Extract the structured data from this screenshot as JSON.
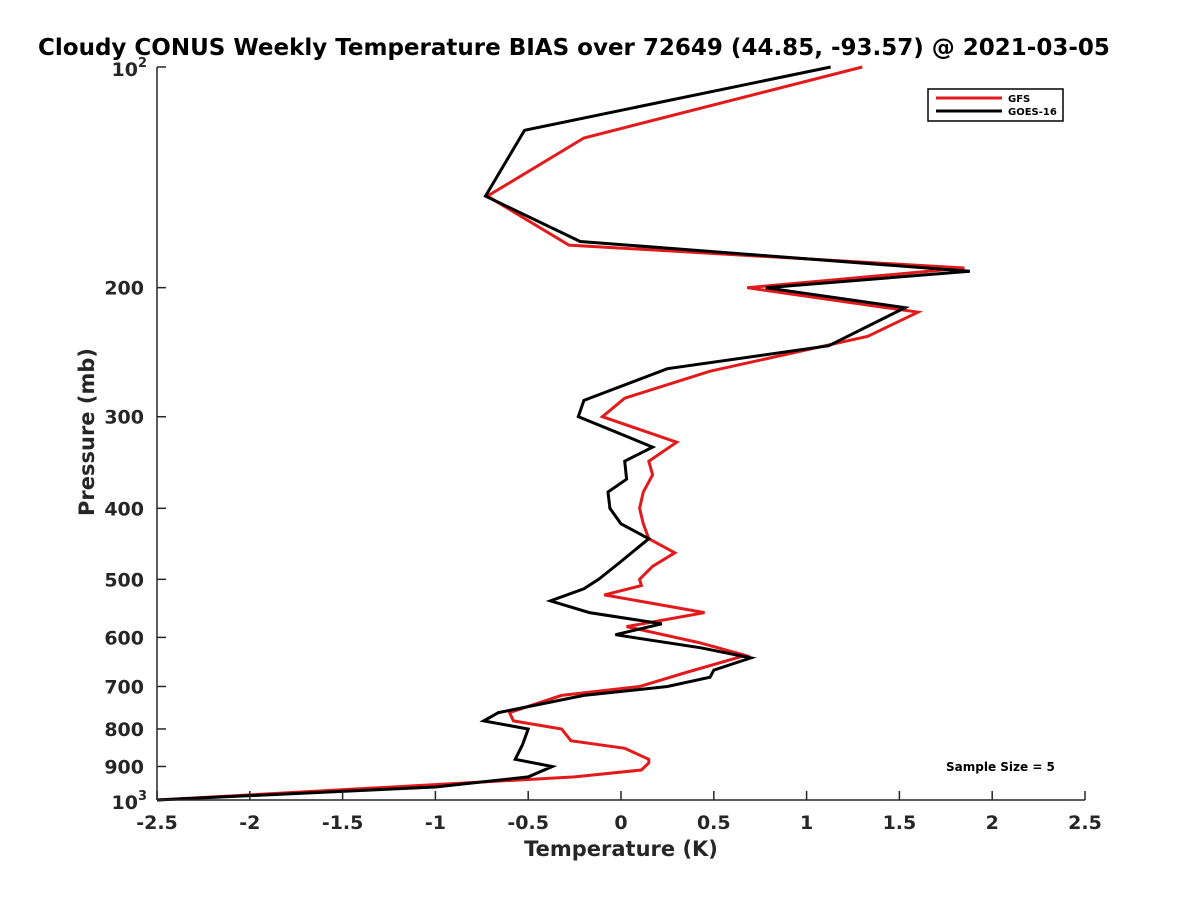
{
  "chart_data": {
    "type": "line",
    "title": "Cloudy CONUS Weekly Temperature BIAS over 72649 (44.85, -93.57) @ 2021-03-05",
    "xlabel": "Temperature (K)",
    "ylabel": "Pressure (mb)",
    "xlim": [
      -2.5,
      2.5
    ],
    "ylim": [
      100,
      1000
    ],
    "y_scale": "log",
    "y_reversed": true,
    "grid": false,
    "legend_position": "top-right",
    "x_ticks": [
      -2.5,
      -2,
      -1.5,
      -1,
      -0.5,
      0,
      0.5,
      1,
      1.5,
      2,
      2.5
    ],
    "x_tick_labels": [
      "-2.5",
      "-2",
      "-1.5",
      "-1",
      "-0.5",
      "0",
      "0.5",
      "1",
      "1.5",
      "2",
      "2.5"
    ],
    "y_ticks": [
      200,
      300,
      400,
      500,
      600,
      700,
      800,
      900
    ],
    "y_tick_labels": [
      "200",
      "300",
      "400",
      "500",
      "600",
      "700",
      "800",
      "900"
    ],
    "y_tick_top": {
      "base": "10",
      "exp": "2"
    },
    "y_tick_bottom": {
      "base": "10",
      "exp": "3"
    },
    "annotation": "Sample Size = 5",
    "series": [
      {
        "name": "GFS",
        "color": "#e31a1c",
        "points": [
          [
            1.3,
            100
          ],
          [
            -0.2,
            125
          ],
          [
            -0.72,
            150
          ],
          [
            -0.28,
            175
          ],
          [
            1.85,
            188
          ],
          [
            0.68,
            200
          ],
          [
            1.6,
            216
          ],
          [
            1.33,
            233
          ],
          [
            0.48,
            260
          ],
          [
            0.02,
            283
          ],
          [
            -0.1,
            300
          ],
          [
            0.3,
            325
          ],
          [
            0.15,
            345
          ],
          [
            0.17,
            360
          ],
          [
            0.12,
            380
          ],
          [
            0.1,
            400
          ],
          [
            0.12,
            420
          ],
          [
            0.15,
            440
          ],
          [
            0.29,
            460
          ],
          [
            0.17,
            480
          ],
          [
            0.1,
            500
          ],
          [
            0.11,
            510
          ],
          [
            -0.09,
            525
          ],
          [
            0.45,
            555
          ],
          [
            0.03,
            580
          ],
          [
            0.42,
            610
          ],
          [
            0.67,
            635
          ],
          [
            0.35,
            670
          ],
          [
            0.1,
            700
          ],
          [
            -0.32,
            720
          ],
          [
            -0.6,
            760
          ],
          [
            -0.58,
            780
          ],
          [
            -0.32,
            800
          ],
          [
            -0.27,
            830
          ],
          [
            0.02,
            850
          ],
          [
            0.15,
            880
          ],
          [
            0.15,
            890
          ],
          [
            0.11,
            910
          ],
          [
            -0.25,
            930
          ],
          [
            -2.5,
            1000
          ]
        ]
      },
      {
        "name": "GOES-16",
        "color": "#000000",
        "points": [
          [
            1.13,
            100
          ],
          [
            -0.52,
            122
          ],
          [
            -0.73,
            150
          ],
          [
            -0.22,
            173
          ],
          [
            1.88,
            190
          ],
          [
            0.78,
            200
          ],
          [
            1.53,
            213
          ],
          [
            1.12,
            240
          ],
          [
            0.25,
            258
          ],
          [
            -0.2,
            285
          ],
          [
            -0.23,
            300
          ],
          [
            0.17,
            330
          ],
          [
            0.02,
            345
          ],
          [
            0.03,
            365
          ],
          [
            -0.07,
            380
          ],
          [
            -0.06,
            400
          ],
          [
            0.0,
            420
          ],
          [
            0.15,
            440
          ],
          [
            -0.01,
            475
          ],
          [
            -0.12,
            500
          ],
          [
            -0.2,
            515
          ],
          [
            -0.38,
            535
          ],
          [
            -0.17,
            555
          ],
          [
            0.22,
            575
          ],
          [
            -0.03,
            595
          ],
          [
            0.43,
            620
          ],
          [
            0.7,
            640
          ],
          [
            0.5,
            665
          ],
          [
            0.48,
            680
          ],
          [
            0.25,
            700
          ],
          [
            -0.2,
            720
          ],
          [
            -0.66,
            760
          ],
          [
            -0.74,
            780
          ],
          [
            -0.5,
            800
          ],
          [
            -0.53,
            840
          ],
          [
            -0.57,
            880
          ],
          [
            -0.37,
            900
          ],
          [
            -0.5,
            930
          ],
          [
            -1.0,
            960
          ],
          [
            -2.5,
            1000
          ]
        ]
      }
    ]
  }
}
